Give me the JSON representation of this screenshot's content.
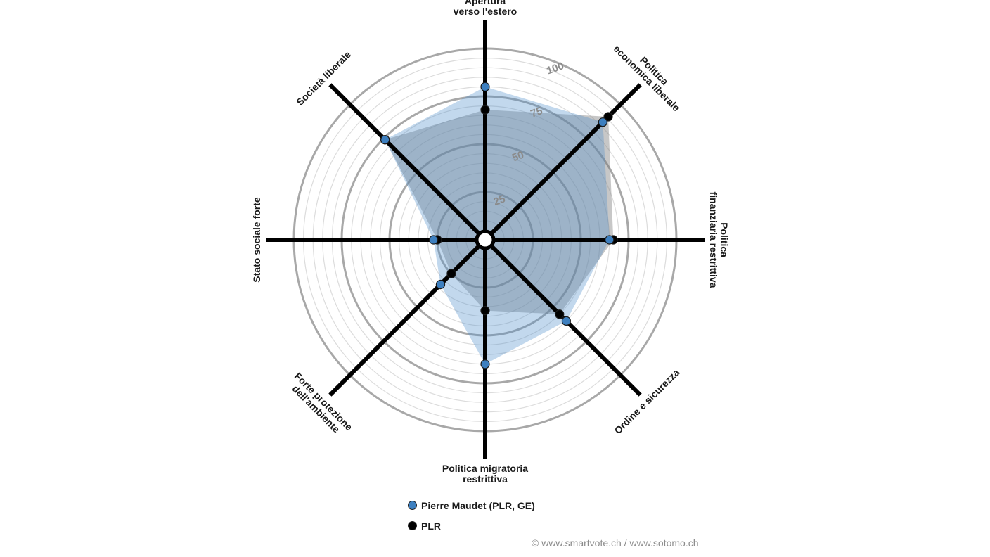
{
  "chart_data": {
    "type": "radar",
    "axes": [
      "Apertura verso l'estero",
      "Politica economica liberale",
      "Politica finanziaria restrittiva",
      "Ordine e sicurezza",
      "Politica migratoria restrittiva",
      "Forte protezione dell'ambiente",
      "Stato sociale forte",
      "Società liberale"
    ],
    "axis_label_lines": [
      [
        "Apertura",
        "verso l'estero"
      ],
      [
        "Politica",
        "economica liberale"
      ],
      [
        "Politica",
        "finanziaria restrittiva"
      ],
      [
        "Ordine e sicurezza"
      ],
      [
        "Politica migratoria",
        "restrittiva"
      ],
      [
        "Forte protezione",
        "dell'ambiente"
      ],
      [
        "Stato sociale forte"
      ],
      [
        "Società liberale"
      ]
    ],
    "range": [
      0,
      100
    ],
    "ticks": [
      25,
      50,
      75,
      100
    ],
    "tick_labels": [
      "25",
      "50",
      "75",
      "100"
    ],
    "series": [
      {
        "name": "Pierre Maudet (PLR, GE)",
        "color": "#3d7fbf",
        "values": [
          80,
          87,
          65,
          60,
          65,
          33,
          27,
          74
        ]
      },
      {
        "name": "PLR",
        "color": "#000000",
        "values": [
          68,
          91,
          67,
          55,
          37,
          25,
          25,
          74
        ]
      }
    ]
  },
  "credit": "© www.smartvote.ch / www.sotomo.ch"
}
